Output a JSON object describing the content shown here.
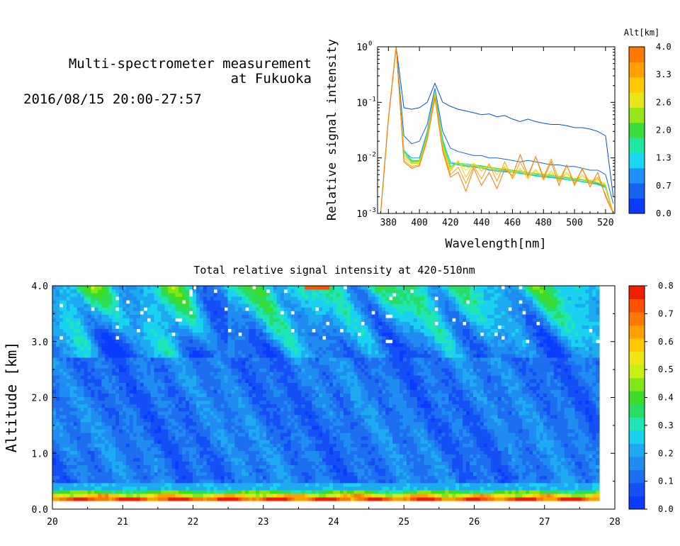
{
  "header": {
    "title_line1": "Multi-spectrometer measurement",
    "title_line2": "at Fukuoka",
    "date_range": "2016/08/15 20:00-27:57"
  },
  "chart_data": [
    {
      "type": "line",
      "title": "",
      "xlabel": "Wavelength[nm]",
      "ylabel": "Relative signal intensity",
      "xlim": [
        373,
        526
      ],
      "ylim": [
        0.001,
        1
      ],
      "yscale": "log",
      "x_ticks": [
        380,
        400,
        420,
        440,
        460,
        480,
        500,
        520
      ],
      "y_ticks": [
        {
          "value": 0.001,
          "mantissa": "10",
          "exp": "-3"
        },
        {
          "value": 0.01,
          "mantissa": "10",
          "exp": "-2"
        },
        {
          "value": 0.1,
          "mantissa": "10",
          "exp": "-1"
        },
        {
          "value": 1,
          "mantissa": "10",
          "exp": "0"
        }
      ],
      "x": [
        375,
        380,
        385,
        390,
        395,
        400,
        405,
        410,
        415,
        420,
        425,
        430,
        435,
        440,
        445,
        450,
        455,
        460,
        465,
        470,
        475,
        480,
        485,
        490,
        495,
        500,
        505,
        510,
        515,
        520,
        525
      ],
      "colorbar": {
        "label": "Alt[km]",
        "tick_labels": [
          "0.0",
          "0.7",
          "1.3",
          "2.0",
          "2.6",
          "3.3",
          "4.0"
        ],
        "colors": [
          "#0a3cff",
          "#1464f0",
          "#1e90ff",
          "#19d7f0",
          "#1fe6a0",
          "#3cdc3c",
          "#96e619",
          "#e6e619",
          "#ffc800",
          "#ffa000",
          "#ff7800"
        ]
      },
      "series": [
        {
          "color": "#0050d0",
          "values": [
            0.001,
            0.05,
            1.0,
            0.08,
            0.075,
            0.08,
            0.1,
            0.22,
            0.1,
            0.085,
            0.075,
            0.07,
            0.065,
            0.06,
            0.062,
            0.055,
            0.058,
            0.05,
            0.045,
            0.05,
            0.045,
            0.042,
            0.04,
            0.04,
            0.038,
            0.035,
            0.035,
            0.033,
            0.03,
            0.025,
            0.002
          ]
        },
        {
          "color": "#1464f0",
          "values": [
            0.001,
            0.05,
            1.0,
            0.025,
            0.018,
            0.02,
            0.04,
            0.18,
            0.03,
            0.015,
            0.013,
            0.012,
            0.011,
            0.011,
            0.01,
            0.01,
            0.0095,
            0.009,
            0.0085,
            0.009,
            0.0085,
            0.008,
            0.0075,
            0.0075,
            0.007,
            0.007,
            0.0065,
            0.006,
            0.006,
            0.005,
            0.0015
          ]
        },
        {
          "color": "#1e90ff",
          "values": [
            0.001,
            0.05,
            1.0,
            0.013,
            0.01,
            0.01,
            0.03,
            0.17,
            0.02,
            0.008,
            0.0075,
            0.007,
            0.0068,
            0.0065,
            0.006,
            0.0058,
            0.0056,
            0.0055,
            0.0053,
            0.005,
            0.0048,
            0.0046,
            0.0045,
            0.0043,
            0.0042,
            0.004,
            0.0038,
            0.0036,
            0.0034,
            0.003,
            0.001
          ]
        },
        {
          "color": "#19d7f0",
          "values": [
            0.001,
            0.05,
            1.0,
            0.014,
            0.009,
            0.009,
            0.028,
            0.16,
            0.022,
            0.008,
            0.008,
            0.0072,
            0.007,
            0.0068,
            0.0062,
            0.006,
            0.0058,
            0.0055,
            0.0052,
            0.005,
            0.0047,
            0.0045,
            0.0044,
            0.0042,
            0.004,
            0.0039,
            0.0037,
            0.0035,
            0.0033,
            0.0029,
            0.001
          ]
        },
        {
          "color": "#1fe6a0",
          "values": [
            0.001,
            0.05,
            1.0,
            0.012,
            0.0085,
            0.0088,
            0.027,
            0.16,
            0.02,
            0.0085,
            0.0078,
            0.0074,
            0.0072,
            0.007,
            0.0066,
            0.0062,
            0.006,
            0.0057,
            0.0055,
            0.0052,
            0.005,
            0.0048,
            0.0046,
            0.0044,
            0.0042,
            0.004,
            0.0038,
            0.0036,
            0.0033,
            0.003,
            0.001
          ]
        },
        {
          "color": "#3cdc3c",
          "values": [
            0.001,
            0.05,
            1.0,
            0.013,
            0.0088,
            0.009,
            0.026,
            0.15,
            0.018,
            0.007,
            0.008,
            0.0078,
            0.0075,
            0.0072,
            0.0068,
            0.0065,
            0.0063,
            0.006,
            0.0058,
            0.0055,
            0.0052,
            0.005,
            0.0048,
            0.0046,
            0.0044,
            0.0042,
            0.004,
            0.0038,
            0.0035,
            0.0031,
            0.001
          ]
        },
        {
          "color": "#96e619",
          "values": [
            0.001,
            0.05,
            1.0,
            0.011,
            0.0082,
            0.0085,
            0.025,
            0.15,
            0.017,
            0.0065,
            0.0082,
            0.007,
            0.0078,
            0.0068,
            0.0066,
            0.0064,
            0.0062,
            0.0059,
            0.0057,
            0.0055,
            0.0053,
            0.0051,
            0.0049,
            0.0047,
            0.0045,
            0.0043,
            0.0041,
            0.0039,
            0.0036,
            0.0032,
            0.001
          ]
        },
        {
          "color": "#e6e619",
          "values": [
            0.001,
            0.05,
            1.0,
            0.012,
            0.008,
            0.0082,
            0.024,
            0.14,
            0.016,
            0.0062,
            0.0085,
            0.006,
            0.0075,
            0.0065,
            0.007,
            0.006,
            0.0066,
            0.0055,
            0.006,
            0.005,
            0.0058,
            0.0048,
            0.0052,
            0.0045,
            0.005,
            0.0042,
            0.0046,
            0.004,
            0.004,
            0.0034,
            0.001
          ]
        },
        {
          "color": "#ffc800",
          "values": [
            0.001,
            0.05,
            1.0,
            0.01,
            0.0078,
            0.008,
            0.023,
            0.14,
            0.015,
            0.0058,
            0.009,
            0.0045,
            0.008,
            0.0058,
            0.0075,
            0.005,
            0.007,
            0.0045,
            0.0065,
            0.0042,
            0.0062,
            0.004,
            0.0058,
            0.0038,
            0.0055,
            0.0036,
            0.005,
            0.0034,
            0.0042,
            0.0032,
            0.001
          ]
        },
        {
          "color": "#ffa000",
          "values": [
            0.001,
            0.05,
            1.0,
            0.009,
            0.007,
            0.0075,
            0.022,
            0.13,
            0.014,
            0.005,
            0.0068,
            0.0035,
            0.0072,
            0.0042,
            0.0078,
            0.0038,
            0.0085,
            0.0042,
            0.0085,
            0.0045,
            0.0105,
            0.0045,
            0.0095,
            0.004,
            0.0072,
            0.0035,
            0.0062,
            0.0035,
            0.0045,
            0.0022,
            0.001
          ]
        },
        {
          "color": "#ff7800",
          "values": [
            0.001,
            0.05,
            1.0,
            0.0085,
            0.0065,
            0.0072,
            0.021,
            0.12,
            0.013,
            0.0045,
            0.0055,
            0.0025,
            0.0065,
            0.0032,
            0.0055,
            0.0028,
            0.0062,
            0.0048,
            0.0115,
            0.0048,
            0.0105,
            0.0042,
            0.0085,
            0.0032,
            0.0075,
            0.0032,
            0.0065,
            0.003,
            0.0055,
            0.002,
            0.001
          ]
        }
      ]
    },
    {
      "type": "heatmap",
      "title": "Total relative signal intensity at 420-510nm",
      "xlabel": "",
      "ylabel": "Altitude [km]",
      "xlim": [
        20,
        28
      ],
      "ylim": [
        0,
        4.0
      ],
      "x_ticks": [
        20,
        21,
        22,
        23,
        24,
        25,
        26,
        27,
        28
      ],
      "y_tick_labels": [
        "0.0",
        "1.0",
        "2.0",
        "3.0",
        "4.0"
      ],
      "data_extent_x": [
        20,
        27.78
      ],
      "data_extent_y": [
        0.17,
        4.0
      ],
      "colorbar": {
        "tick_labels": [
          "0.0",
          "0.1",
          "0.2",
          "0.3",
          "0.4",
          "0.5",
          "0.6",
          "0.7",
          "0.8"
        ],
        "colors": [
          "#0a3cff",
          "#1450f5",
          "#1e6ef0",
          "#1e8cf0",
          "#1eaaf0",
          "#19d2f0",
          "#1fe6b4",
          "#28dc64",
          "#3cdc28",
          "#82e619",
          "#c8f014",
          "#f0e614",
          "#ffc800",
          "#ffa000",
          "#ff7800",
          "#ff5000",
          "#f01e00"
        ]
      },
      "profile_description": "Surface layer near 0.2-0.3 km shows high values (0.4-0.8); 0.4-3.0 km mostly 0.1-0.2; 3.0-4.0 km patchy 0.15-0.5 with cloud gaps (white)."
    }
  ]
}
